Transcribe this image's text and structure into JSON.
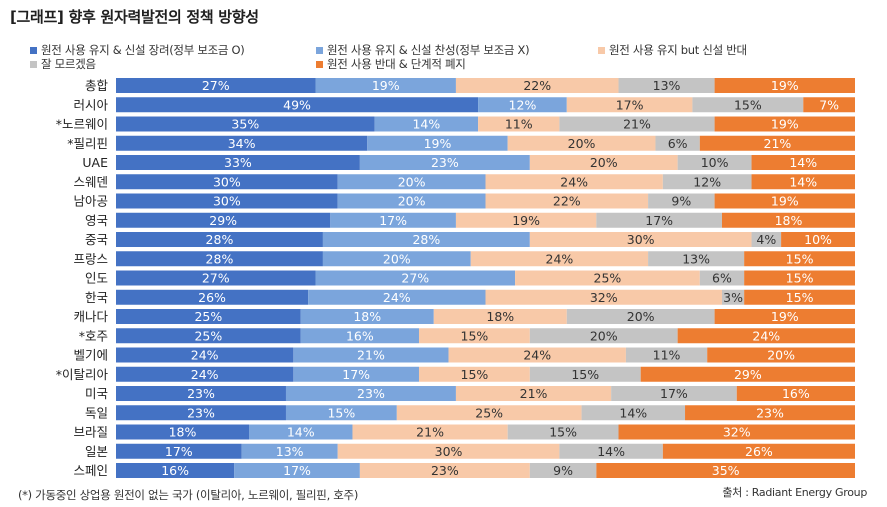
{
  "chart_data": {
    "type": "bar",
    "orientation": "horizontal",
    "stacked": true,
    "normalized": true,
    "title": "[그래프] 향후 원자력발전의 정책 방향성",
    "xlim": [
      0,
      100
    ],
    "unit": "%",
    "categories": [
      "총합",
      "러시아",
      "*노르웨이",
      "*필리핀",
      "UAE",
      "스웨덴",
      "남아공",
      "영국",
      "중국",
      "프랑스",
      "인도",
      "한국",
      "캐나다",
      "*호주",
      "벨기에",
      "*이탈리아",
      "미국",
      "독일",
      "브라질",
      "일본",
      "스페인"
    ],
    "series": [
      {
        "name": "원전 사용 유지 & 신설 장려(정부 보조금 O)",
        "color": "#4472c4",
        "values": [
          27,
          49,
          35,
          34,
          33,
          30,
          30,
          29,
          28,
          28,
          27,
          26,
          25,
          25,
          24,
          24,
          23,
          23,
          18,
          17,
          16
        ]
      },
      {
        "name": "원전 사용 유지 & 신설 찬성(정부 보조금 X)",
        "color": "#7ba5dc",
        "values": [
          19,
          12,
          14,
          19,
          23,
          20,
          20,
          17,
          28,
          20,
          27,
          24,
          18,
          16,
          21,
          17,
          23,
          15,
          14,
          13,
          17
        ]
      },
      {
        "name": "원전 사용 유지 but 신설 반대",
        "color": "#f8c9a8",
        "values": [
          22,
          17,
          11,
          20,
          20,
          24,
          22,
          19,
          30,
          24,
          25,
          32,
          18,
          15,
          24,
          15,
          21,
          25,
          21,
          30,
          23
        ]
      },
      {
        "name": "잘 모르겠음",
        "color": "#c4c4c4",
        "values": [
          13,
          15,
          21,
          6,
          10,
          12,
          9,
          17,
          4,
          13,
          6,
          3,
          20,
          20,
          11,
          15,
          17,
          14,
          15,
          14,
          9
        ]
      },
      {
        "name": "원전 사용 반대 & 단계적 폐지",
        "color": "#ed7d31",
        "values": [
          19,
          7,
          19,
          21,
          14,
          14,
          19,
          18,
          10,
          15,
          15,
          15,
          19,
          24,
          20,
          29,
          16,
          23,
          32,
          26,
          35
        ]
      }
    ]
  },
  "legend": {
    "items": [
      {
        "label": "원전 사용 유지 & 신설 장려(정부 보조금 O)",
        "color": "#4472c4"
      },
      {
        "label": "원전 사용 유지 & 신설 찬성(정부 보조금 X)",
        "color": "#7ba5dc"
      },
      {
        "label": "원전 사용 유지 but 신설 반대",
        "color": "#f8c9a8"
      },
      {
        "label": "잘 모르겠음",
        "color": "#c4c4c4"
      },
      {
        "label": "원전 사용 반대 & 단계적 폐지",
        "color": "#ed7d31"
      }
    ]
  },
  "footnote": "(*) 가동중인 상업용 원전이  없는 국가 (이탈리아, 노르웨이, 필리핀, 호주)",
  "source": "출처 : Radiant Energy Group"
}
